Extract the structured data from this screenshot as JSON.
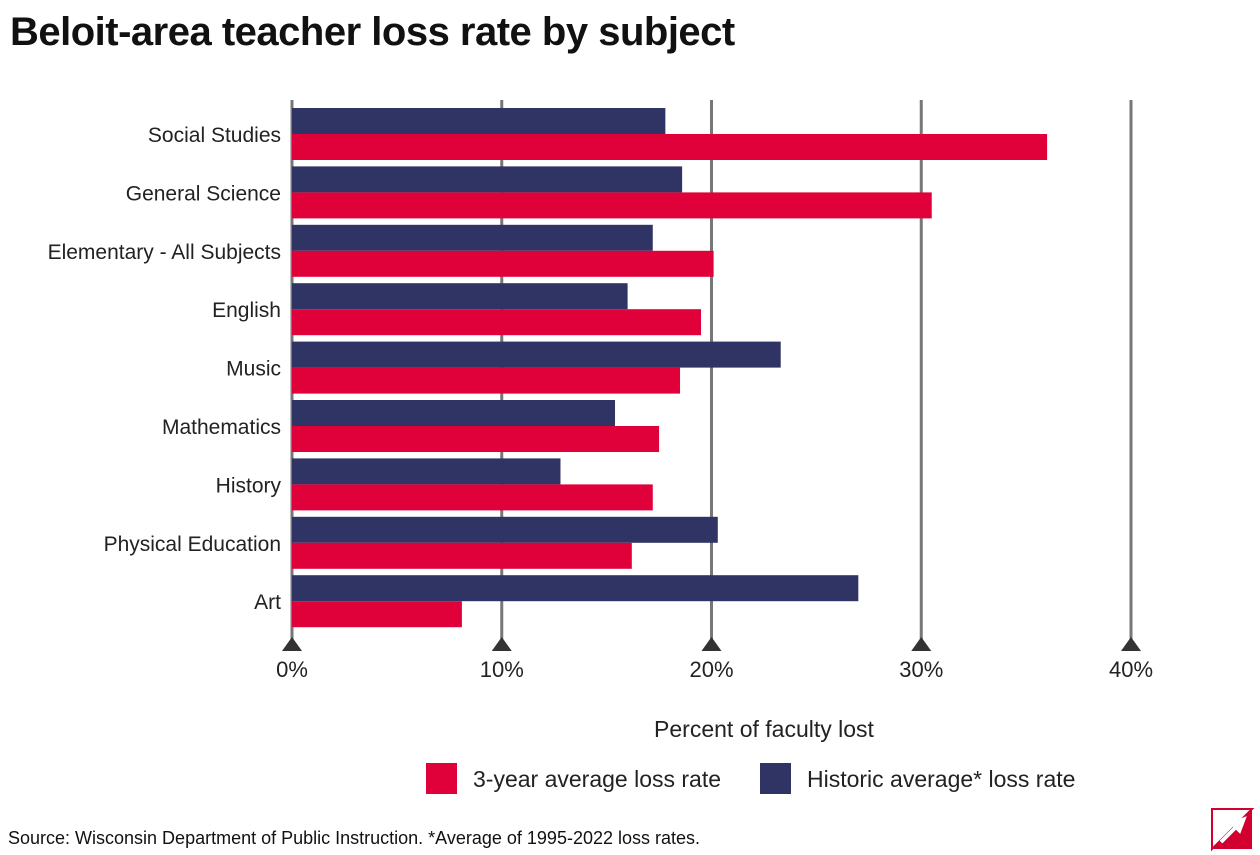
{
  "title": "Beloit-area teacher loss rate by subject",
  "source": "Source: Wisconsin Department of Public Instruction. *Average of 1995-2022 loss rates.",
  "colors": {
    "three_year": "#e0003a",
    "historic": "#2f3464",
    "grid": "#777777"
  },
  "chart_data": {
    "type": "bar",
    "orientation": "horizontal",
    "categories": [
      "Social Studies",
      "General Science",
      "Elementary - All Subjects",
      "English",
      "Music",
      "Mathematics",
      "History",
      "Physical Education",
      "Art"
    ],
    "series": [
      {
        "name": "Historic average* loss rate",
        "values": [
          17.8,
          18.6,
          17.2,
          16.0,
          23.3,
          15.4,
          12.8,
          20.3,
          27.0
        ]
      },
      {
        "name": "3-year average loss rate",
        "values": [
          36.0,
          30.5,
          20.1,
          19.5,
          18.5,
          17.5,
          17.2,
          16.2,
          8.1
        ]
      }
    ],
    "xlabel": "Percent of faculty lost",
    "xlim": [
      0,
      40
    ],
    "xticks": [
      "0%",
      "10%",
      "20%",
      "30%",
      "40%"
    ],
    "grid": true,
    "legend": [
      {
        "label": "3-year average loss rate",
        "color": "#e0003a"
      },
      {
        "label": "Historic average* loss rate",
        "color": "#2f3464"
      }
    ],
    "legend_position": "bottom"
  }
}
